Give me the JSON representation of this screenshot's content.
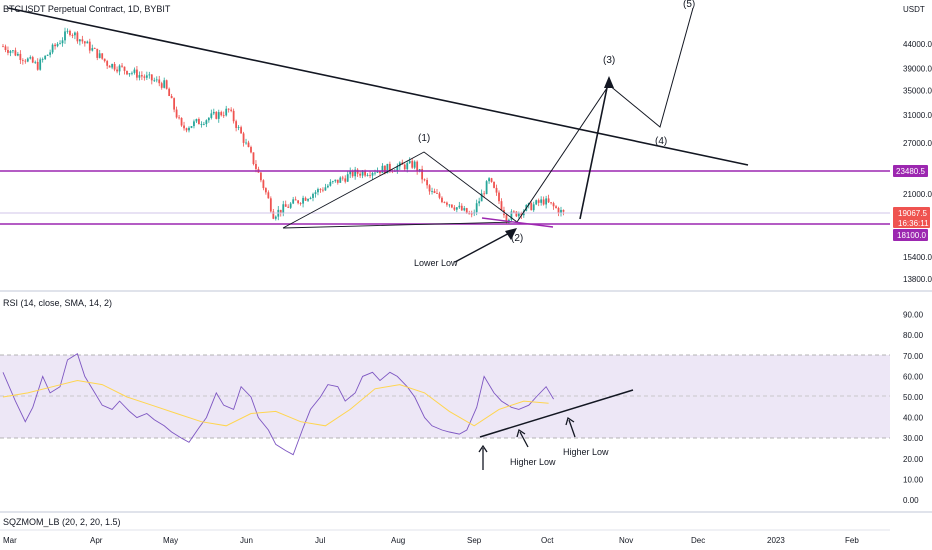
{
  "header": {
    "title": "BTCUSDT Perpetual Contract, 1D, BYBIT",
    "rsi_label": "RSI (14, close, SMA, 14, 2)",
    "sqz_label": "SQZMOM_LB (20, 2, 20, 1.5)"
  },
  "colors": {
    "candle_up": "#26a69a",
    "candle_down": "#ef5350",
    "level_line": "#9c27b0",
    "rsi_line": "#7e57c2",
    "rsi_ma": "#ffd54f",
    "rsi_band": "#ede7f6",
    "last_price_tag": "#ef5350"
  },
  "chart_data": [
    {
      "type": "candlestick",
      "title": "BTCUSDT Perpetual Contract, 1D, BYBIT",
      "y_unit": "USDT",
      "x_ticks": [
        "Mar",
        "Apr",
        "May",
        "Jun",
        "Jul",
        "Aug",
        "Sep",
        "Oct",
        "Nov",
        "Dec",
        "2023",
        "Feb"
      ],
      "y_ticks": [
        13800.0,
        15400.0,
        18100.0,
        21000.0,
        23480.5,
        27000.0,
        31000.0,
        35000.0,
        39000.0,
        44000.0
      ],
      "horizontal_levels": [
        23480.5,
        18100.0
      ],
      "last_price": 19067.5,
      "countdown": "16:36:11",
      "approx_closes": [
        {
          "date": "Mar 1",
          "value": 43500
        },
        {
          "date": "Mar 15",
          "value": 39500
        },
        {
          "date": "Mar 28",
          "value": 47000
        },
        {
          "date": "Apr 12",
          "value": 40000
        },
        {
          "date": "May 5",
          "value": 36000
        },
        {
          "date": "May 12",
          "value": 29000
        },
        {
          "date": "May 31",
          "value": 31700
        },
        {
          "date": "Jun 13",
          "value": 22500
        },
        {
          "date": "Jun 18",
          "value": 19000
        },
        {
          "date": "Jul 8",
          "value": 21600
        },
        {
          "date": "Jul 20",
          "value": 23200
        },
        {
          "date": "Aug 14",
          "value": 24300
        },
        {
          "date": "Aug 20",
          "value": 21200
        },
        {
          "date": "Sep 6",
          "value": 18800
        },
        {
          "date": "Sep 13",
          "value": 22400
        },
        {
          "date": "Sep 20",
          "value": 18700
        },
        {
          "date": "Oct 5",
          "value": 20300
        },
        {
          "date": "Oct 13",
          "value": 19067.5
        }
      ],
      "annotations": [
        "(1)",
        "(2)",
        "(3)",
        "(4)",
        "(5)",
        "Lower Low"
      ]
    },
    {
      "type": "line",
      "title": "RSI (14, close, SMA, 14, 2)",
      "x_ticks": [
        "Mar",
        "Apr",
        "May",
        "Jun",
        "Jul",
        "Aug",
        "Sep",
        "Oct",
        "Nov",
        "Dec",
        "2023",
        "Feb"
      ],
      "y_ticks": [
        0.0,
        10.0,
        20.0,
        30.0,
        40.0,
        50.0,
        60.0,
        70.0,
        80.0,
        90.0
      ],
      "bands": [
        30,
        50,
        70
      ],
      "series": [
        {
          "name": "RSI",
          "x": [
            0,
            5,
            9,
            12,
            16,
            19,
            23,
            26,
            30,
            33,
            37,
            40,
            44,
            47,
            51,
            54,
            58,
            61,
            65,
            68,
            72,
            75,
            79,
            82,
            86,
            89,
            93,
            96,
            100,
            103,
            107,
            110,
            114,
            117,
            121,
            124,
            128,
            131,
            135,
            138,
            142,
            145,
            149,
            152,
            156,
            159,
            163,
            166,
            170,
            173,
            177,
            180,
            184,
            187,
            191,
            194,
            198,
            201,
            205,
            208,
            212,
            215,
            219,
            222
          ],
          "y": [
            62,
            48,
            38,
            45,
            60,
            52,
            55,
            68,
            71,
            60,
            52,
            46,
            44,
            48,
            43,
            40,
            42,
            39,
            36,
            33,
            30,
            28,
            35,
            40,
            52,
            46,
            44,
            55,
            50,
            40,
            34,
            27,
            24,
            22,
            35,
            44,
            50,
            56,
            55,
            48,
            52,
            60,
            62,
            58,
            62,
            60,
            55,
            50,
            40,
            36,
            34,
            33,
            32,
            34,
            45,
            60,
            52,
            48,
            45,
            44,
            46,
            50,
            55,
            49
          ]
        },
        {
          "name": "RSI SMA",
          "x": [
            0,
            10,
            20,
            30,
            40,
            50,
            60,
            70,
            80,
            90,
            100,
            110,
            120,
            130,
            140,
            150,
            160,
            170,
            180,
            190,
            200,
            210,
            220
          ],
          "y": [
            50,
            52,
            55,
            58,
            56,
            50,
            46,
            42,
            38,
            36,
            42,
            43,
            38,
            36,
            44,
            54,
            56,
            52,
            43,
            36,
            44,
            48,
            47
          ]
        }
      ],
      "annotations": [
        "Higher Low",
        "Higher Low"
      ]
    }
  ]
}
